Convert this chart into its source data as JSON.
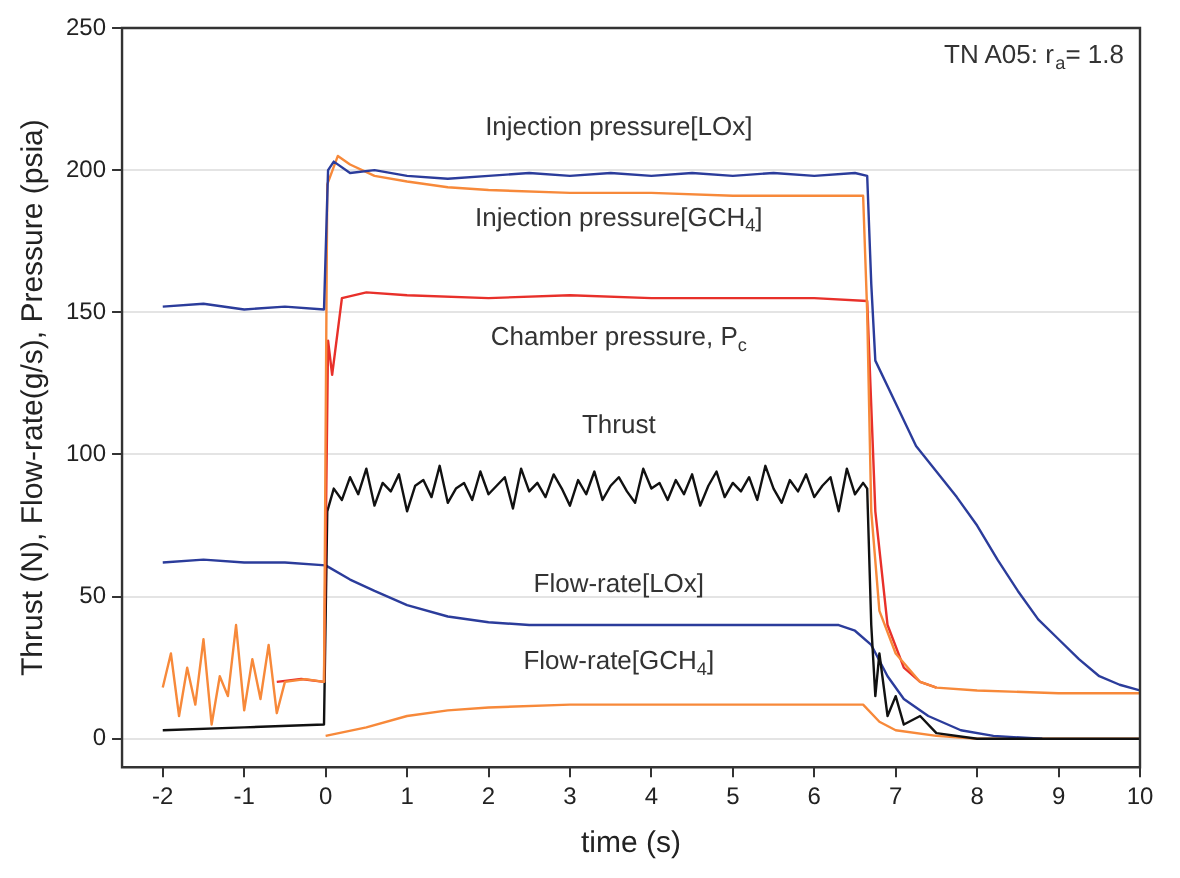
{
  "chart_data": {
    "type": "line",
    "xlabel": "time (s)",
    "ylabel": "Thrust (N), Flow-rate(g/s), Pressure (psia)",
    "annotations": [
      "TN A05: r$_{a}$= 1.8"
    ],
    "xlim": [
      -2.5,
      10
    ],
    "ylim": [
      -10,
      250
    ],
    "xticks": [
      -2,
      -1,
      0,
      1,
      2,
      3,
      4,
      5,
      6,
      7,
      8,
      9,
      10
    ],
    "yticks": [
      0,
      50,
      100,
      150,
      200,
      250
    ],
    "grid": "y",
    "legend": false,
    "marker": "none",
    "line_style": "solid",
    "series": [
      {
        "name": "Injection pressure[LOx]",
        "color": "#2b3c9b",
        "x": [
          -2,
          -1.5,
          -1,
          -0.5,
          -0.02,
          0.03,
          0.1,
          0.3,
          0.6,
          1,
          1.5,
          2,
          2.5,
          3,
          3.5,
          4,
          4.5,
          5,
          5.5,
          6,
          6.5,
          6.65,
          6.7,
          6.75,
          7,
          7.25,
          7.5,
          7.75,
          8,
          8.25,
          8.5,
          8.75,
          9,
          9.25,
          9.5,
          9.75,
          10
        ],
        "values": [
          152,
          153,
          151,
          152,
          151,
          200,
          203,
          199,
          200,
          198,
          197,
          198,
          199,
          198,
          199,
          198,
          199,
          198,
          199,
          198,
          199,
          198,
          160,
          133,
          118,
          103,
          94,
          85,
          75,
          63,
          52,
          42,
          35,
          28,
          22,
          19,
          17
        ]
      },
      {
        "name": "Injection pressure[GCH$_{4}$]",
        "color": "#f7893a",
        "x": [
          -2,
          -1.9,
          -1.8,
          -1.7,
          -1.6,
          -1.5,
          -1.4,
          -1.3,
          -1.2,
          -1.1,
          -1,
          -0.9,
          -0.8,
          -0.7,
          -0.6,
          -0.5,
          -0.25,
          -0.02,
          0.02,
          0.15,
          0.3,
          0.6,
          1,
          1.5,
          2,
          3,
          4,
          5,
          6,
          6.6,
          6.65,
          6.7,
          6.8,
          7,
          7.3,
          7.5,
          8,
          9,
          10
        ],
        "values": [
          18,
          30,
          8,
          25,
          12,
          35,
          5,
          22,
          15,
          40,
          10,
          28,
          14,
          33,
          9,
          20,
          21,
          20,
          195,
          205,
          202,
          198,
          196,
          194,
          193,
          192,
          192,
          191,
          191,
          191,
          150,
          80,
          45,
          30,
          20,
          18,
          17,
          16,
          16
        ]
      },
      {
        "name": "Chamber pressure, P$_{c}$",
        "color": "#e8302a",
        "x": [
          -0.6,
          -0.3,
          -0.02,
          0.03,
          0.08,
          0.2,
          0.5,
          1,
          2,
          3,
          4,
          5,
          6,
          6.65,
          6.75,
          6.9,
          7.1,
          7.3,
          7.5
        ],
        "values": [
          20,
          21,
          20,
          140,
          128,
          155,
          157,
          156,
          155,
          156,
          155,
          155,
          155,
          154,
          80,
          40,
          25,
          20,
          18
        ]
      },
      {
        "name": "Thrust",
        "color": "#111111",
        "x": [
          -2,
          -1,
          -0.02,
          0.02,
          0.1,
          0.2,
          0.3,
          0.4,
          0.5,
          0.6,
          0.7,
          0.8,
          0.9,
          1,
          1.1,
          1.2,
          1.3,
          1.4,
          1.5,
          1.6,
          1.7,
          1.8,
          1.9,
          2,
          2.1,
          2.2,
          2.3,
          2.4,
          2.5,
          2.6,
          2.7,
          2.8,
          2.9,
          3,
          3.1,
          3.2,
          3.3,
          3.4,
          3.5,
          3.6,
          3.7,
          3.8,
          3.9,
          4,
          4.1,
          4.2,
          4.3,
          4.4,
          4.5,
          4.6,
          4.7,
          4.8,
          4.9,
          5,
          5.1,
          5.2,
          5.3,
          5.4,
          5.5,
          5.6,
          5.7,
          5.8,
          5.9,
          6,
          6.1,
          6.2,
          6.3,
          6.4,
          6.5,
          6.6,
          6.65,
          6.7,
          6.75,
          6.8,
          6.9,
          7,
          7.1,
          7.3,
          7.5,
          8,
          10
        ],
        "values": [
          3,
          4,
          5,
          80,
          88,
          84,
          92,
          86,
          95,
          82,
          90,
          87,
          93,
          80,
          89,
          91,
          85,
          96,
          83,
          88,
          90,
          84,
          94,
          86,
          89,
          92,
          81,
          95,
          87,
          90,
          85,
          93,
          88,
          82,
          91,
          86,
          94,
          84,
          89,
          92,
          87,
          83,
          95,
          88,
          90,
          84,
          91,
          86,
          93,
          82,
          89,
          94,
          85,
          90,
          87,
          92,
          84,
          96,
          88,
          83,
          91,
          87,
          93,
          85,
          89,
          92,
          80,
          95,
          86,
          90,
          88,
          40,
          15,
          30,
          8,
          15,
          5,
          8,
          2,
          0,
          0
        ]
      },
      {
        "name": "Flow-rate[LOx]",
        "color": "#2b3c9b",
        "x": [
          -2,
          -1.5,
          -1,
          -0.5,
          0,
          0.3,
          0.6,
          1,
          1.5,
          2,
          2.5,
          3,
          4,
          5,
          6,
          6.3,
          6.5,
          6.7,
          6.9,
          7.1,
          7.4,
          7.8,
          8.2,
          8.8
        ],
        "values": [
          62,
          63,
          62,
          62,
          61,
          56,
          52,
          47,
          43,
          41,
          40,
          40,
          40,
          40,
          40,
          40,
          38,
          33,
          22,
          14,
          8,
          3,
          1,
          0
        ]
      },
      {
        "name": "Flow-rate[GCH$_{4}$]",
        "color": "#f7893a",
        "x": [
          0,
          0.5,
          1,
          1.5,
          2,
          3,
          4,
          5,
          6,
          6.6,
          6.8,
          7,
          7.5,
          8,
          10
        ],
        "values": [
          1,
          4,
          8,
          10,
          11,
          12,
          12,
          12,
          12,
          12,
          6,
          3,
          1,
          0,
          0
        ]
      }
    ]
  }
}
